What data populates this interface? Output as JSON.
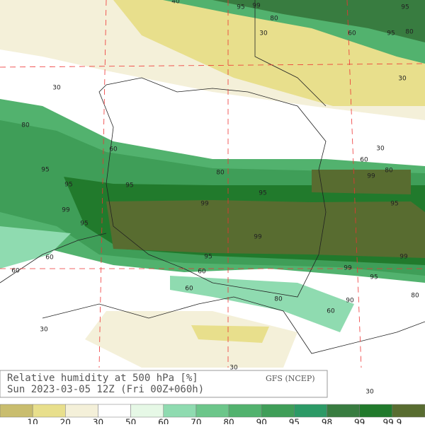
{
  "map": {
    "title": "Relative humidity at 500 hPa [%]",
    "subtitle": "Sun 2023-03-05 12Z (Fri 00Z+060h)",
    "model": "GFS (NCEP)",
    "contour_labels": [
      "40",
      "95",
      "99",
      "80",
      "30",
      "60",
      "95",
      "80",
      "95",
      "30",
      "30",
      "80",
      "60",
      "30",
      "60",
      "80",
      "95",
      "95",
      "80",
      "99",
      "95",
      "95",
      "99",
      "95",
      "99",
      "95",
      "99",
      "60",
      "95",
      "99",
      "60",
      "60",
      "99",
      "95",
      "60",
      "80",
      "80",
      "90",
      "60",
      "30",
      "30",
      "30"
    ]
  },
  "colorbar": {
    "colors": [
      "#c9bd6e",
      "#e8df8c",
      "#f4f0d9",
      "#ffffff",
      "#e6f8e6",
      "#8fdbb0",
      "#6cc68a",
      "#52b26e",
      "#3f9e58",
      "#2c9a66",
      "#387c40",
      "#217a2c",
      "#586c30"
    ],
    "labels": [
      "10",
      "20",
      "30",
      "50",
      "60",
      "70",
      "80",
      "90",
      "95",
      "98",
      "99",
      "99.9"
    ]
  }
}
